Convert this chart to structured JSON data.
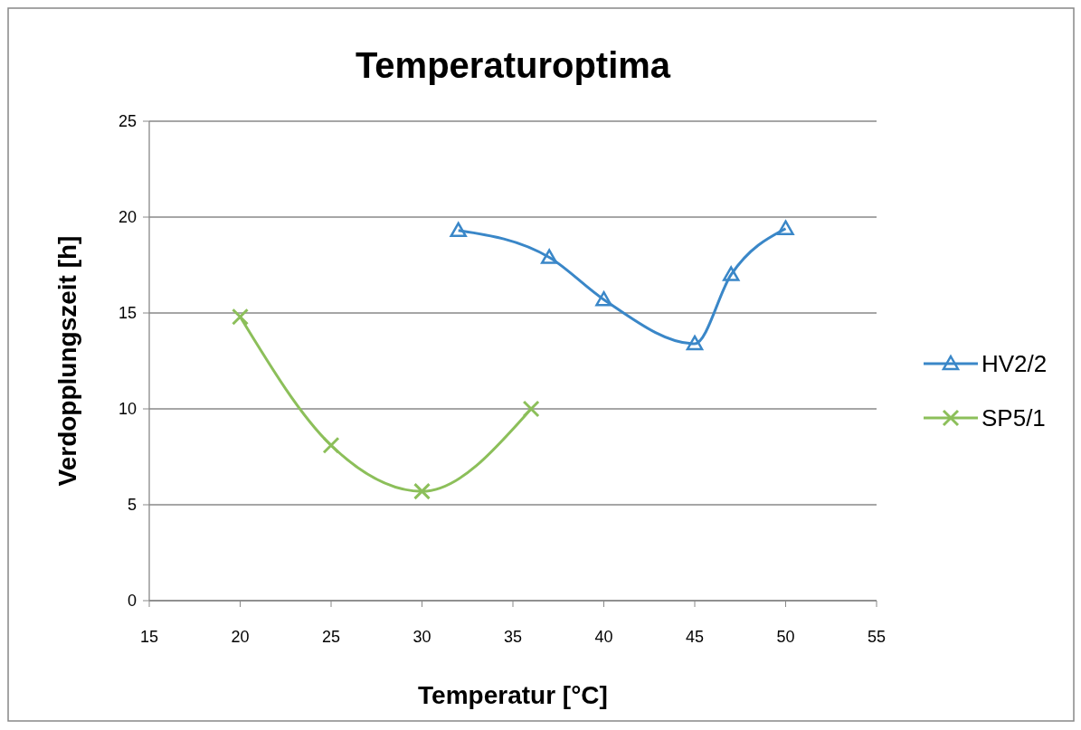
{
  "chart_data": {
    "type": "line",
    "title": "Temperaturoptima",
    "xlabel": "Temperatur [°C]",
    "ylabel": "Verdopplungszeit [h]",
    "xlim": [
      15,
      55
    ],
    "xticks": [
      15,
      20,
      25,
      30,
      35,
      40,
      45,
      50,
      55
    ],
    "ylim": [
      0,
      25
    ],
    "yticks": [
      0,
      5,
      10,
      15,
      20,
      25
    ],
    "grid": "y",
    "legend": "right",
    "series": [
      {
        "name": "HV2/2",
        "color": "#3a87c8",
        "marker": "triangle",
        "x": [
          32,
          37,
          40,
          45,
          47,
          50
        ],
        "values": [
          19.3,
          17.9,
          15.7,
          13.4,
          17.0,
          19.4
        ]
      },
      {
        "name": "SP5/1",
        "color": "#8cbf5a",
        "marker": "cross",
        "x": [
          20,
          25,
          30,
          36
        ],
        "values": [
          14.8,
          8.1,
          5.7,
          10.0
        ]
      }
    ]
  }
}
